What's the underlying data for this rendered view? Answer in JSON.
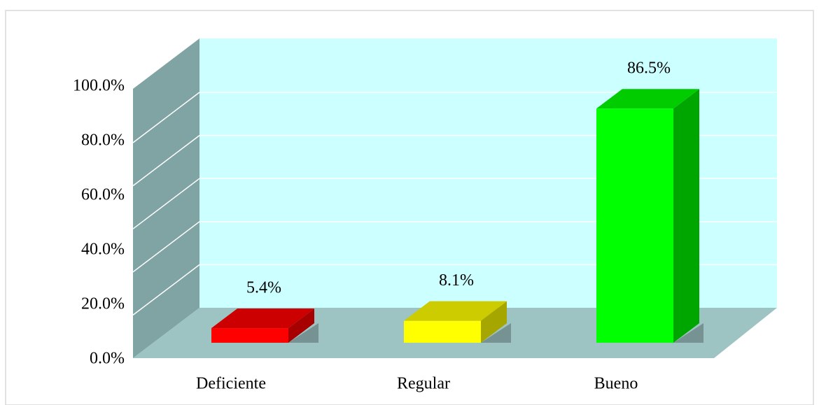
{
  "chart_data": {
    "type": "bar3d",
    "categories": [
      "Deficiente",
      "Regular",
      "Bueno"
    ],
    "values": [
      5.4,
      8.1,
      86.5
    ],
    "value_labels": [
      "5.4%",
      "8.1%",
      "86.5%"
    ],
    "colors": [
      "#ff0000",
      "#ffff00",
      "#00ff00"
    ],
    "ylim": [
      0,
      100
    ],
    "yticks": [
      {
        "value": 0,
        "label": "0.0%"
      },
      {
        "value": 20,
        "label": "20.0%"
      },
      {
        "value": 40,
        "label": "40.0%"
      },
      {
        "value": 60,
        "label": "60.0%"
      },
      {
        "value": 80,
        "label": "80.0%"
      },
      {
        "value": 100,
        "label": "100.0%"
      }
    ],
    "grid": true
  }
}
